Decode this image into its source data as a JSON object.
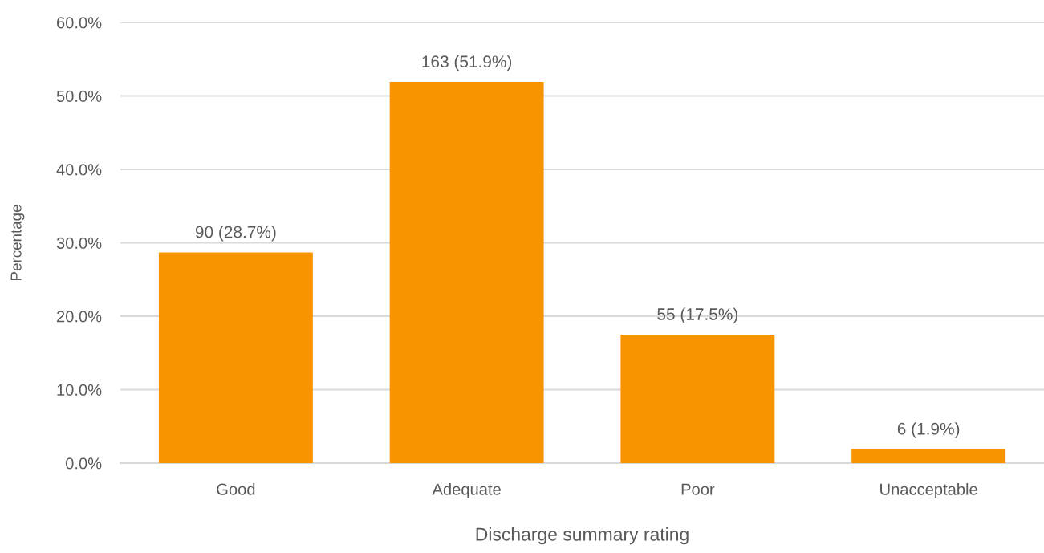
{
  "chart_data": {
    "type": "bar",
    "xlabel": "Discharge summary rating",
    "ylabel": "Percentage",
    "categories": [
      "Good",
      "Adequate",
      "Poor",
      "Unacceptable"
    ],
    "values": [
      28.7,
      51.9,
      17.5,
      1.9
    ],
    "value_labels": [
      "90 (28.7%)",
      "163 (51.9%)",
      "55 (17.5%)",
      "6 (1.9%)"
    ],
    "color": "#f79400",
    "ylim": [
      0,
      60
    ],
    "yticks": [
      {
        "value": 0,
        "label": "0.0%"
      },
      {
        "value": 10,
        "label": "10.0%"
      },
      {
        "value": 20,
        "label": "20.0%"
      },
      {
        "value": 30,
        "label": "30.0%"
      },
      {
        "value": 40,
        "label": "40.0%"
      },
      {
        "value": 50,
        "label": "50.0%"
      },
      {
        "value": 60,
        "label": "60.0%"
      }
    ],
    "grid": "y"
  }
}
